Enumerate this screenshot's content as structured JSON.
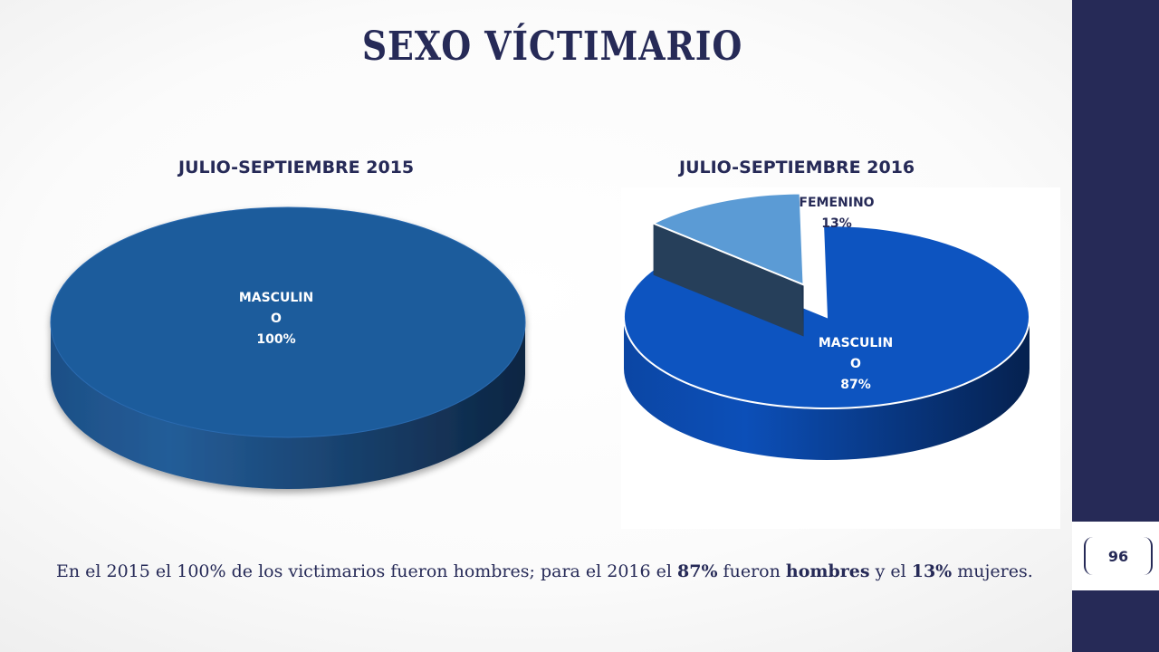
{
  "slide": {
    "title": "SEXO VÍCTIMARIO",
    "page_number": "96"
  },
  "colors": {
    "sidebar": "#262a57",
    "title_text": "#262a57",
    "masculino_2015": "#1f5b9c",
    "masculino_2016": "#0d54c0",
    "femenino_2016": "#5b9bd5"
  },
  "chart_data": [
    {
      "type": "pie",
      "title": "JULIO-SEPTIEMBRE 2015",
      "style": "3d",
      "categories": [
        "MASCULINO"
      ],
      "values": [
        100
      ],
      "unit": "%",
      "data_labels": [
        {
          "category_lines": [
            "MASCULIN",
            "O"
          ],
          "value": "100%"
        }
      ]
    },
    {
      "type": "pie",
      "title": "JULIO-SEPTIEMBRE 2016",
      "style": "3d-exploded",
      "categories": [
        "FEMENINO",
        "MASCULINO"
      ],
      "values": [
        13,
        87
      ],
      "unit": "%",
      "data_labels": [
        {
          "category_lines": [
            "FEMENINO"
          ],
          "value": "13%"
        },
        {
          "category_lines": [
            "MASCULIN",
            "O"
          ],
          "value": "87%"
        }
      ]
    }
  ],
  "conclusion": {
    "part1": "En el 2015 el 100% de los victimarios fueron hombres; para el 2016 el ",
    "bold1": "87%",
    "part2": " fueron ",
    "bold2": "hombres",
    "part3": " y el ",
    "bold3": "13%",
    "part4": " mujeres."
  }
}
